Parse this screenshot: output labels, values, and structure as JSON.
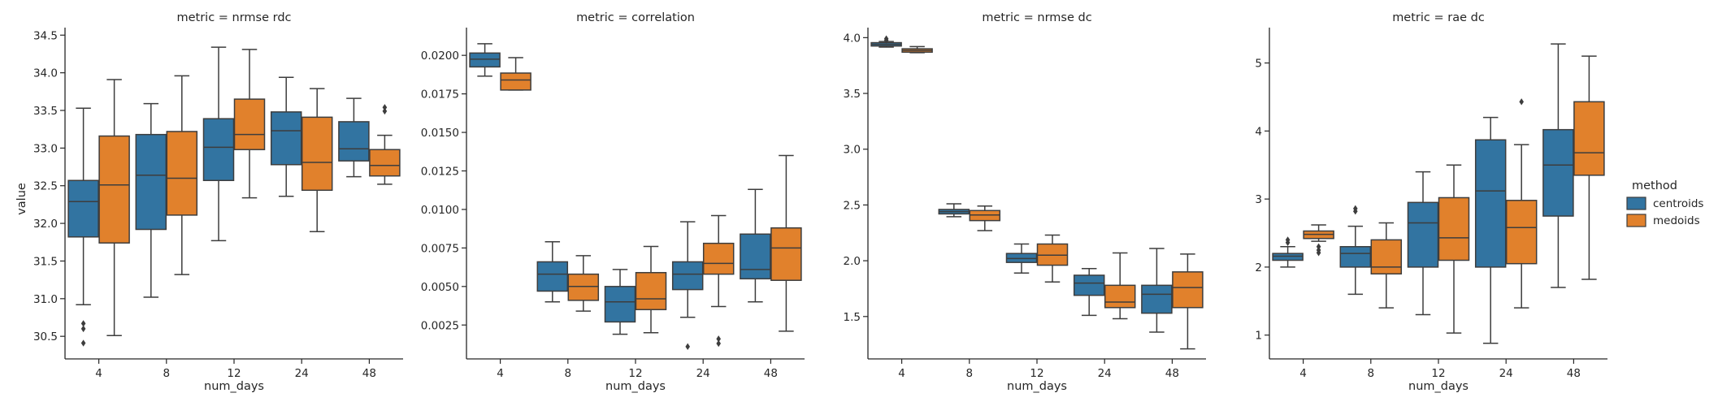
{
  "chart_data": {
    "type": "box",
    "legend": {
      "title": "method",
      "entries": [
        "centroids",
        "medoids"
      ],
      "placement": "right"
    },
    "colors": {
      "centroids": "#3274a1",
      "medoids": "#e1812c",
      "line": "#3d3d3d"
    },
    "x_label": "num_days",
    "y_label": "value",
    "categories": [
      "4",
      "8",
      "12",
      "24",
      "48"
    ],
    "panels": [
      {
        "title": "metric = nrmse rdc",
        "ylim": [
          30.2,
          34.6
        ],
        "yticks": [
          30.5,
          31.0,
          31.5,
          32.0,
          32.5,
          33.0,
          33.5,
          34.0,
          34.5
        ],
        "ytick_labels": [
          "30.5",
          "31.0",
          "31.5",
          "32.0",
          "32.5",
          "33.0",
          "33.5",
          "34.0",
          "34.5"
        ],
        "series": [
          {
            "name": "centroids",
            "boxes": [
              {
                "whislo": 30.92,
                "q1": 31.82,
                "med": 32.29,
                "q3": 32.57,
                "whishi": 33.53,
                "fliers": [
                  30.67,
                  30.6,
                  30.41
                ]
              },
              {
                "whislo": 31.02,
                "q1": 31.92,
                "med": 32.64,
                "q3": 33.18,
                "whishi": 33.59,
                "fliers": []
              },
              {
                "whislo": 31.77,
                "q1": 32.57,
                "med": 33.01,
                "q3": 33.39,
                "whishi": 34.34,
                "fliers": []
              },
              {
                "whislo": 32.36,
                "q1": 32.78,
                "med": 33.23,
                "q3": 33.48,
                "whishi": 33.94,
                "fliers": []
              },
              {
                "whislo": 32.62,
                "q1": 32.83,
                "med": 32.99,
                "q3": 33.35,
                "whishi": 33.66,
                "fliers": []
              }
            ]
          },
          {
            "name": "medoids",
            "boxes": [
              {
                "whislo": 30.51,
                "q1": 31.74,
                "med": 32.51,
                "q3": 33.16,
                "whishi": 33.91,
                "fliers": []
              },
              {
                "whislo": 31.32,
                "q1": 32.11,
                "med": 32.6,
                "q3": 33.22,
                "whishi": 33.96,
                "fliers": []
              },
              {
                "whislo": 32.34,
                "q1": 32.98,
                "med": 33.18,
                "q3": 33.65,
                "whishi": 34.31,
                "fliers": []
              },
              {
                "whislo": 31.89,
                "q1": 32.44,
                "med": 32.81,
                "q3": 33.41,
                "whishi": 33.79,
                "fliers": []
              },
              {
                "whislo": 32.52,
                "q1": 32.63,
                "med": 32.77,
                "q3": 32.98,
                "whishi": 33.17,
                "fliers": [
                  33.54,
                  33.49
                ]
              }
            ]
          }
        ]
      },
      {
        "title": "metric = correlation",
        "ylim": [
          0.0003,
          0.0218
        ],
        "yticks": [
          0.0025,
          0.005,
          0.0075,
          0.01,
          0.0125,
          0.015,
          0.0175,
          0.02
        ],
        "ytick_labels": [
          "0.0025",
          "0.0050",
          "0.0075",
          "0.0100",
          "0.0125",
          "0.0150",
          "0.0175",
          "0.0200"
        ],
        "series": [
          {
            "name": "centroids",
            "boxes": [
              {
                "whislo": 0.01865,
                "q1": 0.01925,
                "med": 0.01975,
                "q3": 0.02015,
                "whishi": 0.02075,
                "fliers": []
              },
              {
                "whislo": 0.004,
                "q1": 0.0047,
                "med": 0.0058,
                "q3": 0.0066,
                "whishi": 0.0079,
                "fliers": []
              },
              {
                "whislo": 0.0019,
                "q1": 0.0027,
                "med": 0.004,
                "q3": 0.005,
                "whishi": 0.0061,
                "fliers": []
              },
              {
                "whislo": 0.003,
                "q1": 0.0048,
                "med": 0.0058,
                "q3": 0.0066,
                "whishi": 0.0092,
                "fliers": [
                  0.0011
                ]
              },
              {
                "whislo": 0.004,
                "q1": 0.0055,
                "med": 0.0061,
                "q3": 0.0084,
                "whishi": 0.0113,
                "fliers": []
              }
            ]
          },
          {
            "name": "medoids",
            "boxes": [
              {
                "whislo": 0.01775,
                "q1": 0.01775,
                "med": 0.0184,
                "q3": 0.01885,
                "whishi": 0.01985,
                "fliers": []
              },
              {
                "whislo": 0.0034,
                "q1": 0.0041,
                "med": 0.005,
                "q3": 0.0058,
                "whishi": 0.007,
                "fliers": []
              },
              {
                "whislo": 0.002,
                "q1": 0.0035,
                "med": 0.0042,
                "q3": 0.0059,
                "whishi": 0.0076,
                "fliers": []
              },
              {
                "whislo": 0.0037,
                "q1": 0.0058,
                "med": 0.0065,
                "q3": 0.0078,
                "whishi": 0.0096,
                "fliers": [
                  0.0016,
                  0.0013
                ]
              },
              {
                "whislo": 0.0021,
                "q1": 0.0054,
                "med": 0.0075,
                "q3": 0.0088,
                "whishi": 0.0135,
                "fliers": []
              }
            ]
          }
        ]
      },
      {
        "title": "metric = nrmse dc",
        "ylim": [
          1.12,
          4.09
        ],
        "yticks": [
          1.5,
          2.0,
          2.5,
          3.0,
          3.5,
          4.0
        ],
        "ytick_labels": [
          "1.5",
          "2.0",
          "2.5",
          "3.0",
          "3.5",
          "4.0"
        ],
        "series": [
          {
            "name": "centroids",
            "boxes": [
              {
                "whislo": 3.915,
                "q1": 3.925,
                "med": 3.94,
                "q3": 3.955,
                "whishi": 3.965,
                "fliers": [
                  3.99,
                  3.975
                ]
              },
              {
                "whislo": 2.395,
                "q1": 2.42,
                "med": 2.44,
                "q3": 2.46,
                "whishi": 2.51,
                "fliers": []
              },
              {
                "whislo": 1.89,
                "q1": 1.985,
                "med": 2.02,
                "q3": 2.065,
                "whishi": 2.15,
                "fliers": []
              },
              {
                "whislo": 1.51,
                "q1": 1.69,
                "med": 1.8,
                "q3": 1.87,
                "whishi": 1.93,
                "fliers": []
              },
              {
                "whislo": 1.36,
                "q1": 1.53,
                "med": 1.7,
                "q3": 1.78,
                "whishi": 2.11,
                "fliers": []
              }
            ]
          },
          {
            "name": "medoids",
            "boxes": [
              {
                "whislo": 3.865,
                "q1": 3.87,
                "med": 3.885,
                "q3": 3.9,
                "whishi": 3.92,
                "fliers": []
              },
              {
                "whislo": 2.27,
                "q1": 2.36,
                "med": 2.41,
                "q3": 2.45,
                "whishi": 2.49,
                "fliers": []
              },
              {
                "whislo": 1.81,
                "q1": 1.96,
                "med": 2.05,
                "q3": 2.15,
                "whishi": 2.23,
                "fliers": []
              },
              {
                "whislo": 1.48,
                "q1": 1.58,
                "med": 1.63,
                "q3": 1.78,
                "whishi": 2.07,
                "fliers": []
              },
              {
                "whislo": 1.21,
                "q1": 1.58,
                "med": 1.76,
                "q3": 1.9,
                "whishi": 2.06,
                "fliers": []
              }
            ]
          }
        ]
      },
      {
        "title": "metric = rae dc",
        "ylim": [
          0.65,
          5.52
        ],
        "yticks": [
          1,
          2,
          3,
          4,
          5
        ],
        "ytick_labels": [
          "1",
          "2",
          "3",
          "4",
          "5"
        ],
        "series": [
          {
            "name": "centroids",
            "boxes": [
              {
                "whislo": 2.0,
                "q1": 2.1,
                "med": 2.16,
                "q3": 2.2,
                "whishi": 2.3,
                "fliers": [
                  2.4,
                  2.36
                ]
              },
              {
                "whislo": 1.6,
                "q1": 2.0,
                "med": 2.2,
                "q3": 2.3,
                "whishi": 2.6,
                "fliers": [
                  2.86,
                  2.82
                ]
              },
              {
                "whislo": 1.3,
                "q1": 2.0,
                "med": 2.65,
                "q3": 2.95,
                "whishi": 3.4,
                "fliers": []
              },
              {
                "whislo": 0.88,
                "q1": 2.0,
                "med": 3.12,
                "q3": 3.87,
                "whishi": 4.2,
                "fliers": []
              },
              {
                "whislo": 1.7,
                "q1": 2.75,
                "med": 3.5,
                "q3": 4.02,
                "whishi": 5.28,
                "fliers": []
              }
            ]
          },
          {
            "name": "medoids",
            "boxes": [
              {
                "whislo": 2.38,
                "q1": 2.42,
                "med": 2.48,
                "q3": 2.53,
                "whishi": 2.62,
                "fliers": [
                  2.3,
                  2.25,
                  2.21
                ]
              },
              {
                "whislo": 1.4,
                "q1": 1.9,
                "med": 2.0,
                "q3": 2.4,
                "whishi": 2.65,
                "fliers": []
              },
              {
                "whislo": 1.03,
                "q1": 2.1,
                "med": 2.43,
                "q3": 3.02,
                "whishi": 3.5,
                "fliers": []
              },
              {
                "whislo": 1.4,
                "q1": 2.05,
                "med": 2.58,
                "q3": 2.98,
                "whishi": 3.8,
                "fliers": [
                  4.43
                ]
              },
              {
                "whislo": 1.82,
                "q1": 3.35,
                "med": 3.68,
                "q3": 4.43,
                "whishi": 5.1,
                "fliers": []
              }
            ]
          }
        ]
      }
    ]
  }
}
